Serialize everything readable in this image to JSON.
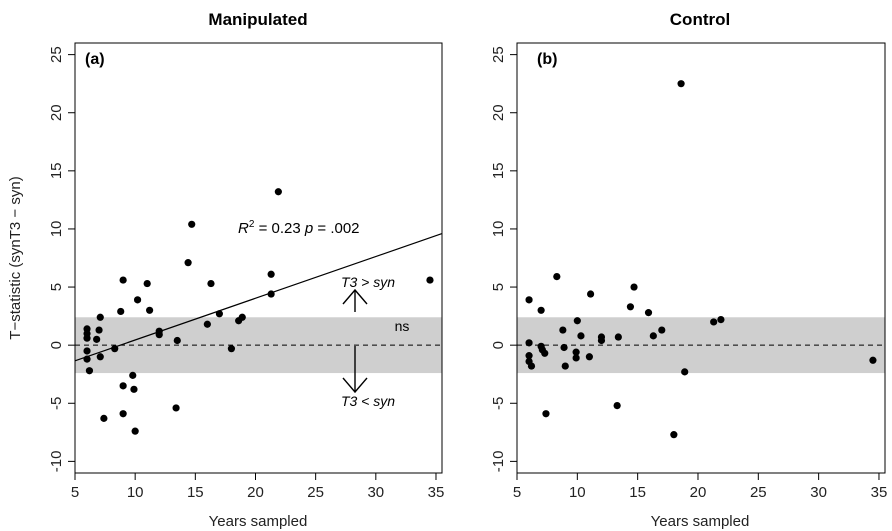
{
  "chart_data": [
    {
      "type": "scatter",
      "title": "Manipulated",
      "panel_label": "(a)",
      "xlabel": "Years sampled",
      "ylabel": "T−statistic (synT3 − syn)",
      "xlim": [
        5,
        35.5
      ],
      "ylim": [
        -11,
        26
      ],
      "xticks": [
        5,
        10,
        15,
        20,
        25,
        30,
        35
      ],
      "yticks": [
        -10,
        -5,
        0,
        5,
        10,
        15,
        20,
        25
      ],
      "ns_band": [
        -2.4,
        2.4
      ],
      "reference_line_y": 0,
      "regression": {
        "x": [
          5,
          35.5
        ],
        "y": [
          -1.35,
          9.6
        ],
        "stat_prefix": "R",
        "stat_sup": "2",
        "stat_text": " = 0.23 ",
        "p_label": "p",
        "p_value_text": " = .002"
      },
      "annotations": {
        "above": "T3 > syn",
        "below": "T3 < syn",
        "band": "ns"
      },
      "points": [
        {
          "x": 6,
          "y": 1.4
        },
        {
          "x": 6,
          "y": 1.0
        },
        {
          "x": 6,
          "y": 0.6
        },
        {
          "x": 6,
          "y": -0.5
        },
        {
          "x": 6,
          "y": -1.2
        },
        {
          "x": 6.2,
          "y": -2.2
        },
        {
          "x": 6.8,
          "y": 0.5
        },
        {
          "x": 7,
          "y": 1.3
        },
        {
          "x": 7.1,
          "y": 2.4
        },
        {
          "x": 7.1,
          "y": -1.0
        },
        {
          "x": 7.4,
          "y": -6.3
        },
        {
          "x": 8.3,
          "y": -0.3
        },
        {
          "x": 8.8,
          "y": 2.9
        },
        {
          "x": 9,
          "y": 5.6
        },
        {
          "x": 9,
          "y": -3.5
        },
        {
          "x": 9,
          "y": -5.9
        },
        {
          "x": 9.8,
          "y": -2.6
        },
        {
          "x": 9.9,
          "y": -3.8
        },
        {
          "x": 10,
          "y": -7.4
        },
        {
          "x": 10.2,
          "y": 3.9
        },
        {
          "x": 11,
          "y": 5.3
        },
        {
          "x": 11.2,
          "y": 3.0
        },
        {
          "x": 12,
          "y": 1.2
        },
        {
          "x": 12,
          "y": 0.9
        },
        {
          "x": 13.4,
          "y": -5.4
        },
        {
          "x": 13.5,
          "y": 0.4
        },
        {
          "x": 14.4,
          "y": 7.1
        },
        {
          "x": 14.7,
          "y": 10.4
        },
        {
          "x": 16,
          "y": 1.8
        },
        {
          "x": 16.3,
          "y": 5.3
        },
        {
          "x": 17,
          "y": 2.7
        },
        {
          "x": 18,
          "y": -0.3
        },
        {
          "x": 18.6,
          "y": 2.1
        },
        {
          "x": 18.9,
          "y": 2.4
        },
        {
          "x": 21.3,
          "y": 6.1
        },
        {
          "x": 21.3,
          "y": 4.4
        },
        {
          "x": 21.9,
          "y": 13.2
        },
        {
          "x": 34.5,
          "y": 5.6
        }
      ]
    },
    {
      "type": "scatter",
      "title": "Control",
      "panel_label": "(b)",
      "xlabel": "Years sampled",
      "ylabel": "",
      "xlim": [
        5,
        35.5
      ],
      "ylim": [
        -11,
        26
      ],
      "xticks": [
        5,
        10,
        15,
        20,
        25,
        30,
        35
      ],
      "yticks": [
        -10,
        -5,
        0,
        5,
        10,
        15,
        20,
        25
      ],
      "ns_band": [
        -2.4,
        2.4
      ],
      "reference_line_y": 0,
      "points": [
        {
          "x": 6,
          "y": 3.9
        },
        {
          "x": 6,
          "y": 0.2
        },
        {
          "x": 6,
          "y": -0.9
        },
        {
          "x": 6,
          "y": -1.4
        },
        {
          "x": 6.2,
          "y": -1.8
        },
        {
          "x": 7,
          "y": 3.0
        },
        {
          "x": 7,
          "y": -0.1
        },
        {
          "x": 7.1,
          "y": -0.4
        },
        {
          "x": 7.3,
          "y": -0.7
        },
        {
          "x": 7.4,
          "y": -5.9
        },
        {
          "x": 8.3,
          "y": 5.9
        },
        {
          "x": 8.8,
          "y": 1.3
        },
        {
          "x": 8.9,
          "y": -0.2
        },
        {
          "x": 9.0,
          "y": -1.8
        },
        {
          "x": 9.9,
          "y": -0.6
        },
        {
          "x": 9.9,
          "y": -1.1
        },
        {
          "x": 10,
          "y": 2.1
        },
        {
          "x": 10.3,
          "y": 0.8
        },
        {
          "x": 11,
          "y": -1.0
        },
        {
          "x": 11.1,
          "y": 4.4
        },
        {
          "x": 12,
          "y": 0.7
        },
        {
          "x": 12,
          "y": 0.4
        },
        {
          "x": 13.3,
          "y": -5.2
        },
        {
          "x": 13.4,
          "y": 0.7
        },
        {
          "x": 14.4,
          "y": 3.3
        },
        {
          "x": 14.7,
          "y": 5.0
        },
        {
          "x": 15.9,
          "y": 2.8
        },
        {
          "x": 16.3,
          "y": 0.8
        },
        {
          "x": 17,
          "y": 1.3
        },
        {
          "x": 18,
          "y": -7.7
        },
        {
          "x": 18.6,
          "y": 22.5
        },
        {
          "x": 18.9,
          "y": -2.3
        },
        {
          "x": 21.3,
          "y": 2.0
        },
        {
          "x": 21.9,
          "y": 2.2
        },
        {
          "x": 34.5,
          "y": -1.3
        }
      ]
    }
  ]
}
